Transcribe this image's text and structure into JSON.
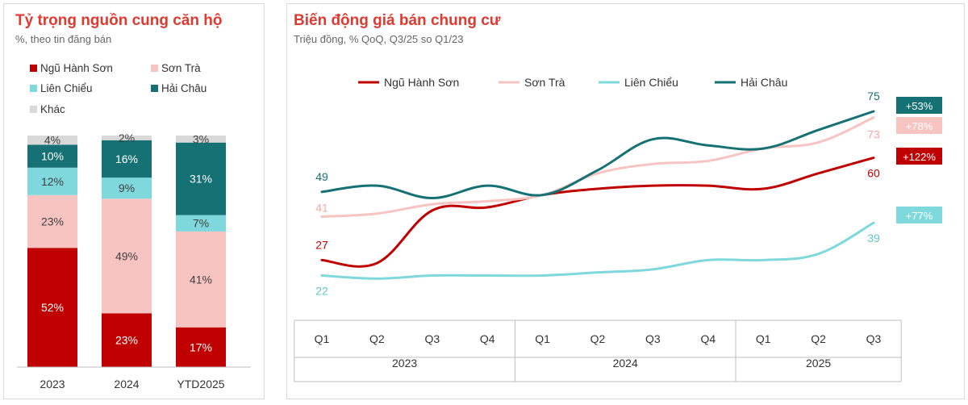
{
  "left_chart": {
    "title": "Tỷ trọng nguồn cung căn hộ",
    "subtitle": "%, theo tin đăng bán",
    "colors": {
      "Ngũ Hành Sơn": "#c00000",
      "Sơn Trà": "#f8c4c2",
      "Liên Chiểu": "#7fd8dc",
      "Hải Châu": "#157173",
      "Khác": "#d9d9d9"
    },
    "label_colors": {
      "Ngũ Hành Sơn": "#ffffff",
      "Sơn Trà": "#404040",
      "Liên Chiểu": "#404040",
      "Hải Châu": "#ffffff",
      "Khác": "#404040"
    }
  },
  "right_chart": {
    "title": "Biến động giá bán chung cư",
    "subtitle": "Triệu đồng, % QoQ, Q3/25 so Q1/23"
  },
  "chart_data": [
    {
      "type": "bar",
      "stacked": true,
      "categories": [
        "2023",
        "2024",
        "YTD2025"
      ],
      "series": [
        {
          "name": "Ngũ Hành Sơn",
          "values": [
            52,
            23,
            17
          ]
        },
        {
          "name": "Sơn Trà",
          "values": [
            23,
            49,
            41
          ]
        },
        {
          "name": "Liên Chiểu",
          "values": [
            12,
            9,
            7
          ]
        },
        {
          "name": "Hải Châu",
          "values": [
            10,
            16,
            31
          ]
        },
        {
          "name": "Khác",
          "values": [
            4,
            2,
            3
          ]
        }
      ],
      "value_suffix": "%",
      "ylim": [
        0,
        100
      ],
      "legend_placement": "top",
      "grid": false
    },
    {
      "type": "line",
      "x": [
        "Q1",
        "Q2",
        "Q3",
        "Q4",
        "Q1",
        "Q2",
        "Q3",
        "Q4",
        "Q1",
        "Q2",
        "Q3"
      ],
      "x_groups": [
        {
          "label": "2023",
          "count": 4
        },
        {
          "label": "2024",
          "count": 4
        },
        {
          "label": "2025",
          "count": 3
        }
      ],
      "series": [
        {
          "name": "Ngũ Hành Sơn",
          "color": "#c00000",
          "values": [
            27,
            26,
            43,
            44,
            48,
            50,
            51,
            51,
            50,
            55,
            60
          ],
          "start_label": "27",
          "end_label": "60",
          "change": "+122%"
        },
        {
          "name": "Sơn Trà",
          "color": "#f8c4c2",
          "values": [
            41,
            42,
            45,
            46,
            48,
            55,
            58,
            59,
            63,
            65,
            73
          ],
          "start_label": "41",
          "end_label": "73",
          "change": "+78%"
        },
        {
          "name": "Liên Chiểu",
          "color": "#7fd8dc",
          "values": [
            22,
            21,
            22,
            22,
            22,
            23,
            24,
            27,
            27,
            29,
            39
          ],
          "start_label": "22",
          "end_label": "39",
          "change": "+77%"
        },
        {
          "name": "Hải Châu",
          "color": "#157173",
          "values": [
            49,
            51,
            47,
            51,
            48,
            56,
            66,
            64,
            63,
            69,
            75
          ],
          "start_label": "49",
          "end_label": "75",
          "change": "+53%"
        }
      ],
      "legend_placement": "top",
      "grid": false
    }
  ]
}
